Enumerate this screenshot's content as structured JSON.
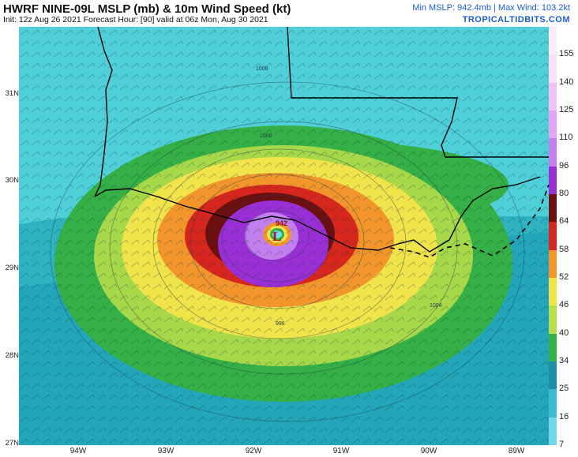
{
  "header": {
    "title": "HWRF NINE-09L MSLP (mb) & 10m Wind Speed (kt)",
    "subtitle": "Init: 12z Aug 26 2021   Forecast Hour: [90]   valid at 06z Mon, Aug 30 2021",
    "stats": "Min MSLP: 942.4mb | Max Wind: 103.2kt",
    "brand": "TROPICALTIDBITS.COM"
  },
  "map": {
    "storm_symbol": "L",
    "min_pressure_label": "942",
    "isobar_labels": [
      "1008",
      "1000",
      "996",
      "1004"
    ],
    "lat_labels": [
      "31N",
      "30N",
      "29N",
      "28N",
      "27N"
    ],
    "lon_labels": [
      "94W",
      "93W",
      "92W",
      "91W",
      "90W",
      "89W"
    ],
    "colors": {
      "land_low": "#4fd0d9",
      "ts_green": "#33b34a",
      "yellow": "#e8e24a",
      "orange": "#f39a2d",
      "red": "#d9221c",
      "darkred": "#7a0f10",
      "purple": "#9b30d9",
      "lavender": "#c68ef0",
      "eye_cyan": "#6fe0f0"
    }
  },
  "colorbar": {
    "labels": [
      "155",
      "140",
      "125",
      "110",
      "96",
      "80",
      "64",
      "58",
      "52",
      "46",
      "40",
      "34",
      "25",
      "16",
      "7"
    ],
    "levels": [
      {
        "min": 7,
        "max": 16,
        "color": "#73d9e8"
      },
      {
        "min": 16,
        "max": 25,
        "color": "#3cbccc"
      },
      {
        "min": 25,
        "max": 34,
        "color": "#1c8ea6"
      },
      {
        "min": 34,
        "max": 40,
        "color": "#35b046"
      },
      {
        "min": 40,
        "max": 46,
        "color": "#b6e04a"
      },
      {
        "min": 46,
        "max": 52,
        "color": "#f1e34a"
      },
      {
        "min": 52,
        "max": 58,
        "color": "#f2962c"
      },
      {
        "min": 58,
        "max": 64,
        "color": "#d7261d"
      },
      {
        "min": 64,
        "max": 80,
        "color": "#6d0e10"
      },
      {
        "min": 80,
        "max": 96,
        "color": "#9a2fd6"
      },
      {
        "min": 96,
        "max": 110,
        "color": "#c27fee"
      },
      {
        "min": 110,
        "max": 125,
        "color": "#e4a6f4"
      },
      {
        "min": 125,
        "max": 140,
        "color": "#f2c2f4"
      },
      {
        "min": 140,
        "max": 155,
        "color": "#f9dff8"
      },
      {
        "min": 155,
        "max": 165,
        "color": "#fcecfa"
      }
    ]
  }
}
